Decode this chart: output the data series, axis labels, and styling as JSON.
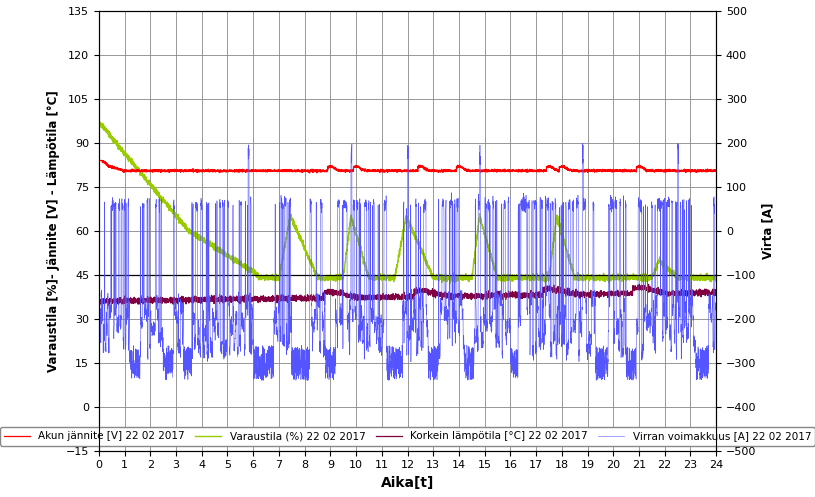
{
  "xlabel": "Aika[t]",
  "ylabel_left": "Varaustila [%]- Jännite [V] - Lämpötila [°C]",
  "ylabel_right": "Virta [A]",
  "xlim": [
    0,
    24
  ],
  "ylim_left": [
    -15,
    135
  ],
  "ylim_right": [
    -500,
    500
  ],
  "yticks_left": [
    -15,
    0,
    15,
    30,
    45,
    60,
    75,
    90,
    105,
    120,
    135
  ],
  "yticks_right": [
    -500,
    -400,
    -300,
    -200,
    -100,
    0,
    100,
    200,
    300,
    400,
    500
  ],
  "xticks": [
    0,
    1,
    2,
    3,
    4,
    5,
    6,
    7,
    8,
    9,
    10,
    11,
    12,
    13,
    14,
    15,
    16,
    17,
    18,
    19,
    20,
    21,
    22,
    23,
    24
  ],
  "legend_labels": [
    "Akun jännite [V] 22 02 2017",
    "Varaustila (%) 22 02 2017",
    "Korkein lämpötila [°C] 22 02 2017",
    "Virran voimakkuus [A] 22 02 2017"
  ],
  "line_colors": [
    "#ff0000",
    "#99cc00",
    "#800040",
    "#5555ff"
  ],
  "background_color": "#ffffff",
  "horizontal_line_color": "#000000",
  "horizontal_line_y": 45,
  "grid_color": "#888888"
}
